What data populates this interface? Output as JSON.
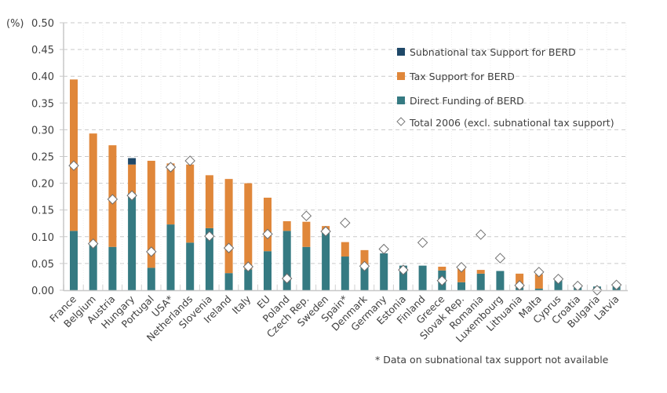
{
  "chart_data": {
    "type": "bar",
    "stacked": true,
    "title": "",
    "ylabel": "(%)",
    "xlabel": "",
    "ylim": [
      0,
      0.5
    ],
    "yticks": [
      "0.00",
      "0.05",
      "0.10",
      "0.15",
      "0.20",
      "0.25",
      "0.30",
      "0.35",
      "0.40",
      "0.45",
      "0.50"
    ],
    "ytick_values": [
      0,
      0.05,
      0.1,
      0.15,
      0.2,
      0.25,
      0.3,
      0.35,
      0.4,
      0.45,
      0.5
    ],
    "grid": "horizontal-dashed",
    "legend_position": "top-right",
    "categories": [
      "France",
      "Belgium",
      "Austria",
      "Hungary",
      "Portugal",
      "USA*",
      "Netherlands",
      "Slovenia",
      "Ireland",
      "Italy",
      "EU",
      "Poland",
      "Czech Rep.",
      "Sweden",
      "Spain*",
      "Denmark",
      "Germany",
      "Estonia",
      "Finland",
      "Greece",
      "Slovak Rep.",
      "Romania",
      "Luxembourg",
      "Lithuania",
      "Malta",
      "Cyprus",
      "Croatia",
      "Bulgaria",
      "Latvia"
    ],
    "series": [
      {
        "name": "Direct Funding of BERD",
        "color": "#357a82",
        "values": [
          0.111,
          0.087,
          0.081,
          0.181,
          0.042,
          0.123,
          0.089,
          0.116,
          0.032,
          0.039,
          0.073,
          0.111,
          0.081,
          0.107,
          0.063,
          0.045,
          0.069,
          0.046,
          0.046,
          0.037,
          0.015,
          0.031,
          0.036,
          0.005,
          0.003,
          0.019,
          0.009,
          0.007,
          0.007
        ]
      },
      {
        "name": "Tax Support for BERD",
        "color": "#e0873a",
        "values": [
          0.283,
          0.206,
          0.19,
          0.054,
          0.2,
          0.114,
          0.146,
          0.099,
          0.176,
          0.161,
          0.1,
          0.018,
          0.047,
          0.013,
          0.027,
          0.03,
          0.0,
          0.0,
          0.0,
          0.007,
          0.029,
          0.007,
          0.0,
          0.026,
          0.027,
          0.0,
          0.002,
          0.0,
          0.0
        ]
      },
      {
        "name": "Subnational tax Support for BERD",
        "color": "#1f4868",
        "values": [
          0,
          0,
          0,
          0.012,
          0,
          0,
          0,
          0,
          0,
          0,
          0,
          0,
          0,
          0,
          0,
          0,
          0,
          0,
          0,
          0,
          0,
          0,
          0,
          0,
          0,
          0,
          0,
          0,
          0
        ]
      }
    ],
    "markers": {
      "name": "Total 2006 (excl. subnational tax support)",
      "symbol": "diamond",
      "values": [
        0.233,
        0.087,
        0.17,
        0.177,
        0.072,
        0.23,
        0.242,
        0.101,
        0.079,
        0.044,
        0.105,
        0.022,
        0.139,
        0.11,
        0.126,
        0.045,
        0.077,
        0.038,
        0.089,
        0.018,
        0.043,
        0.104,
        0.06,
        0.009,
        0.034,
        0.021,
        0.008,
        0.0,
        0.01
      ]
    },
    "legend": [
      {
        "label": "Subnational tax Support for BERD",
        "symbol": "square",
        "color": "#1f4868"
      },
      {
        "label": "Tax Support for BERD",
        "symbol": "square",
        "color": "#e0873a"
      },
      {
        "label": "Direct Funding of BERD",
        "symbol": "square",
        "color": "#357a82"
      },
      {
        "label": "Total 2006 (excl. subnational tax support)",
        "symbol": "diamond",
        "color": "#ffffff"
      }
    ],
    "footnote": "* Data on subnational tax support not available"
  }
}
